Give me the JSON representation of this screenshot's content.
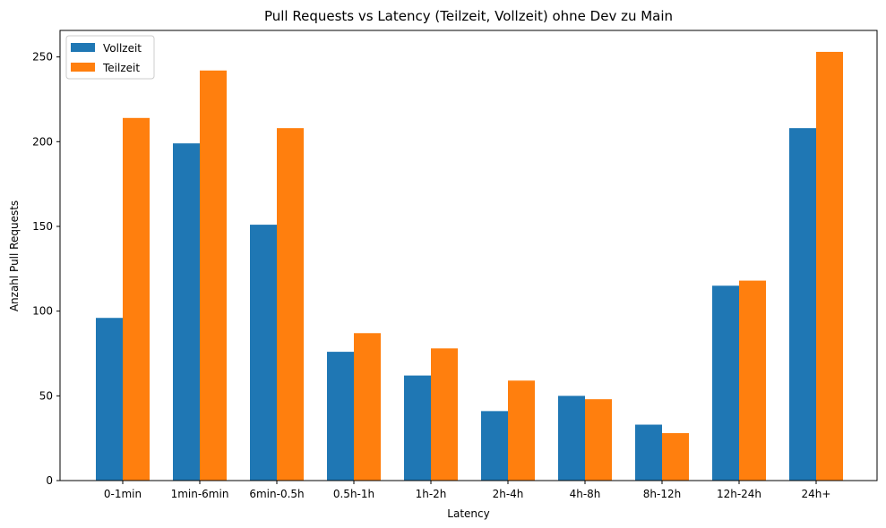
{
  "chart_data": {
    "type": "bar",
    "title": "Pull Requests vs Latency (Teilzeit, Vollzeit) ohne Dev zu Main",
    "xlabel": "Latency",
    "ylabel": "Anzahl Pull Requests",
    "categories": [
      "0-1min",
      "1min-6min",
      "6min-0.5h",
      "0.5h-1h",
      "1h-2h",
      "2h-4h",
      "4h-8h",
      "8h-12h",
      "12h-24h",
      "24h+"
    ],
    "series": [
      {
        "name": "Vollzeit",
        "color": "#1f77b4",
        "values": [
          96,
          199,
          151,
          76,
          62,
          41,
          50,
          33,
          115,
          208
        ]
      },
      {
        "name": "Teilzeit",
        "color": "#ff7f0e",
        "values": [
          214,
          242,
          208,
          87,
          78,
          59,
          48,
          28,
          118,
          253
        ]
      }
    ],
    "ylim": [
      0,
      265.65
    ],
    "yticks": [
      0,
      50,
      100,
      150,
      200,
      250
    ],
    "grid": false,
    "legend": "top-left"
  }
}
